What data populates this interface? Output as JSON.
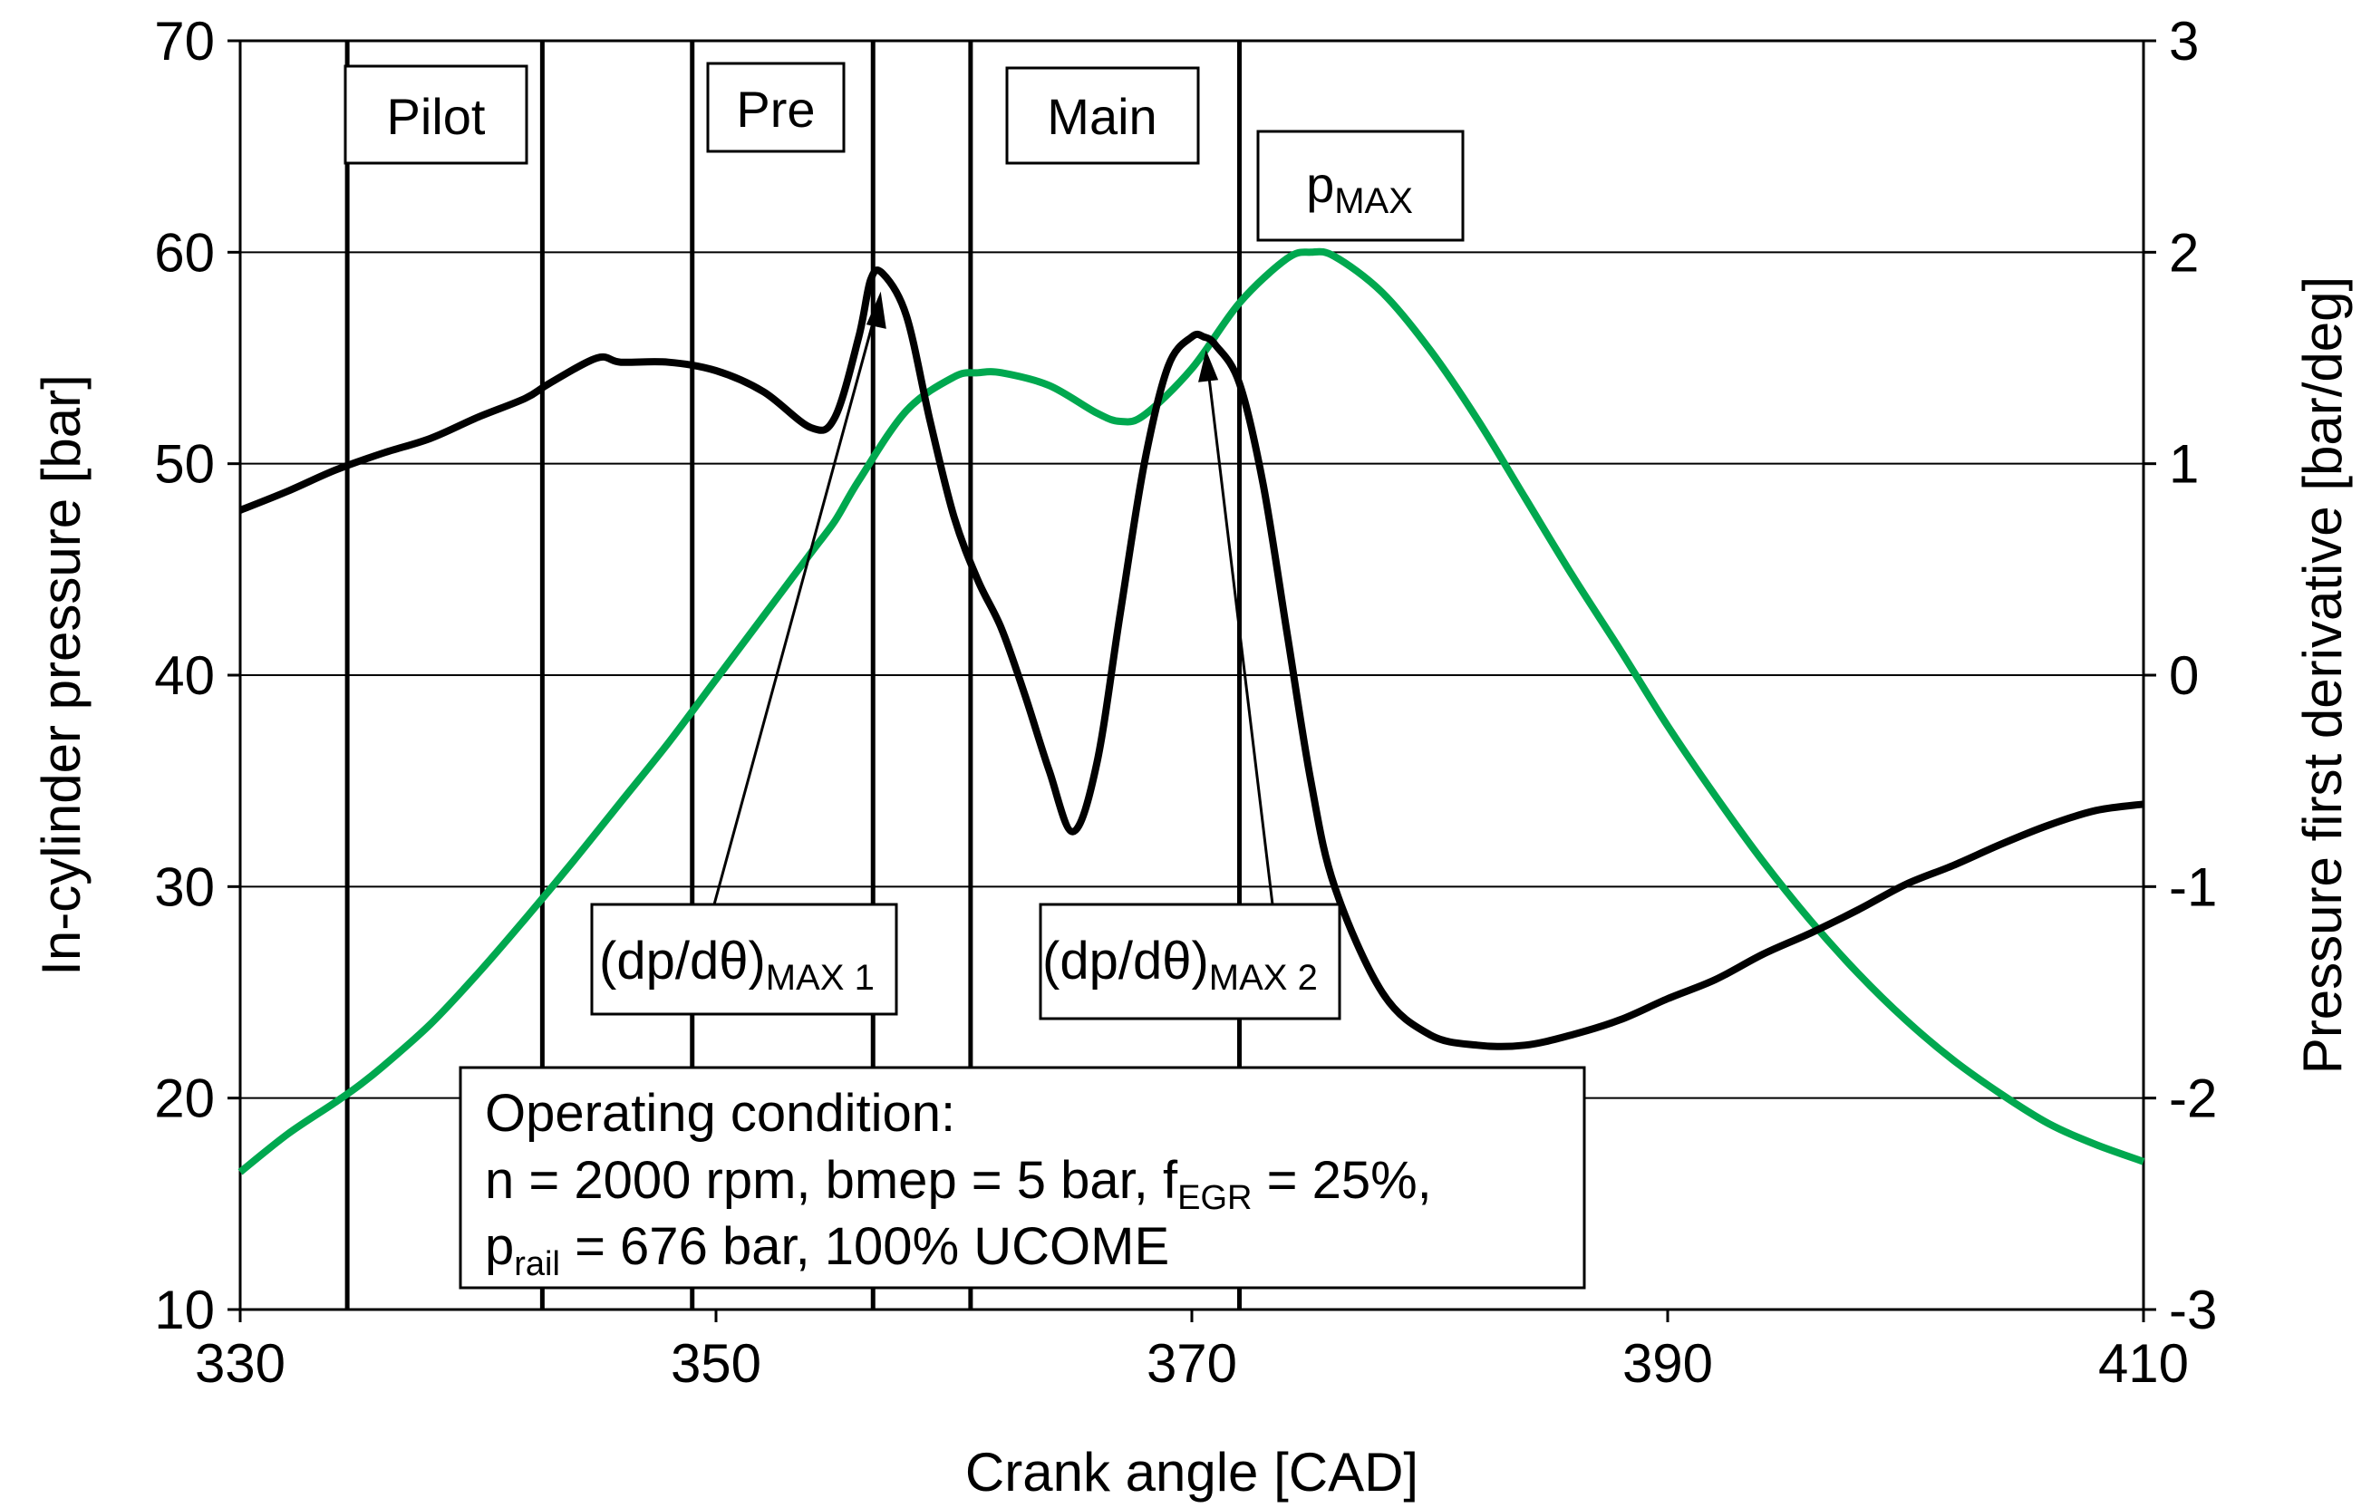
{
  "chart_data": {
    "type": "line",
    "title": "",
    "xlabel": "Crank angle [CAD]",
    "ylabel": "In-cylinder pressure [bar]",
    "y2label": "Pressure first derivative [bar/deg]",
    "xlim": [
      330,
      410
    ],
    "ylim": [
      10,
      70
    ],
    "y2lim": [
      -3,
      3
    ],
    "x_ticks": [
      "330",
      "350",
      "370",
      "390",
      "410"
    ],
    "y_ticks": [
      "10",
      "20",
      "30",
      "40",
      "50",
      "60",
      "70"
    ],
    "y2_ticks": [
      "-3",
      "-2",
      "-1",
      "0",
      "1",
      "2",
      "3"
    ],
    "grid": "horizontal",
    "series": [
      {
        "name": "In-cylinder pressure",
        "axis": "left",
        "color": "#00a84f",
        "x": [
          330,
          332,
          334,
          335,
          336,
          338,
          340,
          342,
          344,
          346,
          348,
          350,
          352,
          354,
          355,
          356,
          358,
          360,
          361,
          362,
          364,
          366,
          367,
          368,
          370,
          372,
          374,
          375,
          376,
          378,
          380,
          382,
          384,
          386,
          388,
          390,
          392,
          394,
          396,
          398,
          400,
          402,
          404,
          406,
          408,
          410
        ],
        "values": [
          16.5,
          18.3,
          19.8,
          20.6,
          21.5,
          23.5,
          25.9,
          28.5,
          31.2,
          34.0,
          36.8,
          39.8,
          42.8,
          45.8,
          47.3,
          49.2,
          52.5,
          54.1,
          54.3,
          54.3,
          53.7,
          52.4,
          52.0,
          52.3,
          54.5,
          57.6,
          59.7,
          60.0,
          59.8,
          58.1,
          55.4,
          52.1,
          48.4,
          44.7,
          41.2,
          37.6,
          34.3,
          31.2,
          28.4,
          25.9,
          23.7,
          21.8,
          20.2,
          18.8,
          17.8,
          17.0
        ]
      },
      {
        "name": "Pressure first derivative",
        "axis": "right",
        "color": "#000000",
        "x": [
          330,
          332,
          334,
          336,
          338,
          340,
          342,
          343,
          345,
          346,
          348,
          350,
          352,
          354,
          355,
          356,
          356.5,
          357,
          358,
          359,
          360,
          361,
          362,
          363,
          364,
          365,
          366,
          367,
          368,
          369,
          370,
          370.5,
          371,
          372,
          373,
          374,
          375,
          376,
          378,
          380,
          382,
          384,
          386,
          388,
          390,
          392,
          394,
          396,
          398,
          400,
          402,
          404,
          406,
          408,
          410
        ],
        "values": [
          0.78,
          0.87,
          0.97,
          1.05,
          1.12,
          1.22,
          1.31,
          1.38,
          1.5,
          1.48,
          1.48,
          1.44,
          1.34,
          1.17,
          1.22,
          1.6,
          1.87,
          1.9,
          1.7,
          1.2,
          0.75,
          0.45,
          0.22,
          -0.1,
          -0.45,
          -0.74,
          -0.42,
          0.3,
          1.0,
          1.46,
          1.6,
          1.6,
          1.56,
          1.38,
          0.9,
          0.2,
          -0.5,
          -1.0,
          -1.5,
          -1.7,
          -1.75,
          -1.75,
          -1.7,
          -1.63,
          -1.53,
          -1.44,
          -1.32,
          -1.22,
          -1.11,
          -0.99,
          -0.9,
          -0.8,
          -0.71,
          -0.64,
          -0.61
        ]
      }
    ],
    "phases": [
      {
        "label": "Pilot",
        "start": 334.5,
        "end": 342.7
      },
      {
        "label": "Pre",
        "start": 349.0,
        "end": 356.6
      },
      {
        "label": "Main",
        "start": 360.7,
        "end": 372.0
      }
    ],
    "annotations": {
      "pmax": {
        "base": "p",
        "sub": "MAX"
      },
      "dpdtheta_max1": {
        "base": "(dp/dθ)",
        "sub": "MAX 1"
      },
      "dpdtheta_max2": {
        "base": "(dp/dθ)",
        "sub": "MAX 2"
      }
    },
    "operating_condition": {
      "title": "Operating condition:",
      "line1_prefix": "n = 2000 rpm, bmep = 5 bar, f",
      "line1_sub": "EGR",
      "line1_suffix": " = 25%,",
      "line2_prefix": "p",
      "line2_sub": "rail",
      "line2_suffix": " = 676 bar, 100% UCOME"
    }
  }
}
